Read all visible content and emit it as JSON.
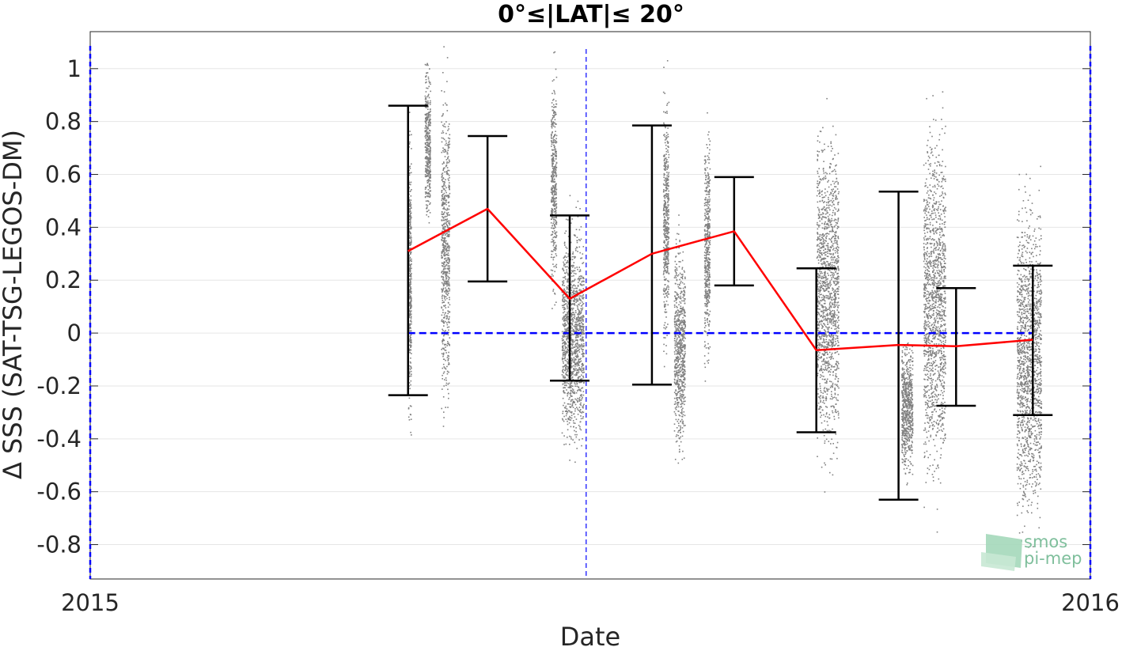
{
  "chart_data": {
    "type": "scatter",
    "title": "0°≤|LAT|≤ 20°",
    "xlabel": "Date",
    "ylabel": "Δ SSS (SAT-TSG-LEGOS-DM)",
    "x_ticks": [
      "2015",
      "2016"
    ],
    "xlim": [
      "2015-01-01",
      "2016-01-01"
    ],
    "ylim": [
      -0.93,
      1.14
    ],
    "y_ticks": [
      -0.8,
      -0.6,
      -0.4,
      -0.2,
      0,
      0.2,
      0.4,
      0.6,
      0.8,
      1
    ],
    "y_tick_labels": [
      "-0.8",
      "-0.6",
      "-0.4",
      "-0.2",
      "0",
      "0.2",
      "0.4",
      "0.6",
      "0.8",
      "1"
    ],
    "grid": "horizontal",
    "reference_lines": [
      {
        "axis": "y",
        "value": 0,
        "x_from": "2015-04-27",
        "x_to": "2015-12-11",
        "style": "dashed",
        "color": "#0000ff"
      },
      {
        "axis": "x",
        "value": "2015-07-01",
        "style": "dashed",
        "color": "#0000ff"
      }
    ],
    "series": [
      {
        "role": "monthly_mean",
        "color": "#ff0000",
        "x": [
          "2015-04-27",
          "2015-05-26",
          "2015-06-25",
          "2015-07-25",
          "2015-08-24",
          "2015-09-23",
          "2015-10-23",
          "2015-11-13",
          "2015-12-11"
        ],
        "y": [
          0.31,
          0.47,
          0.13,
          0.3,
          0.385,
          -0.065,
          -0.045,
          -0.05,
          -0.025
        ]
      },
      {
        "role": "error_bars",
        "color": "#000000",
        "x": [
          "2015-04-27",
          "2015-05-26",
          "2015-06-25",
          "2015-07-25",
          "2015-08-24",
          "2015-09-23",
          "2015-10-23",
          "2015-11-13",
          "2015-12-11"
        ],
        "lower": [
          -0.235,
          0.195,
          -0.18,
          -0.195,
          0.18,
          -0.375,
          -0.63,
          -0.275,
          -0.31
        ],
        "upper": [
          0.86,
          0.745,
          0.445,
          0.785,
          0.59,
          0.245,
          0.535,
          0.17,
          0.255
        ]
      }
    ],
    "scatter_clusters": [
      {
        "x_from": "2015-04-27",
        "x_to": "2015-04-28",
        "y_from": -0.52,
        "y_to": 0.95
      },
      {
        "x_from": "2015-05-03",
        "x_to": "2015-05-05",
        "y_from": 0.32,
        "y_to": 1.1
      },
      {
        "x_from": "2015-05-09",
        "x_to": "2015-05-12",
        "y_from": -0.48,
        "y_to": 1.14
      },
      {
        "x_from": "2015-06-18",
        "x_to": "2015-06-20",
        "y_from": 0.0,
        "y_to": 1.12
      },
      {
        "x_from": "2015-06-22",
        "x_to": "2015-06-30",
        "y_from": -0.57,
        "y_to": 0.55
      },
      {
        "x_from": "2015-07-29",
        "x_to": "2015-07-31",
        "y_from": -0.2,
        "y_to": 1.05
      },
      {
        "x_from": "2015-08-02",
        "x_to": "2015-08-06",
        "y_from": -0.6,
        "y_to": 0.5
      },
      {
        "x_from": "2015-08-13",
        "x_to": "2015-08-15",
        "y_from": -0.28,
        "y_to": 0.92
      },
      {
        "x_from": "2015-09-23",
        "x_to": "2015-10-01",
        "y_from": -0.67,
        "y_to": 1.0
      },
      {
        "x_from": "2015-10-24",
        "x_to": "2015-10-28",
        "y_from": -0.62,
        "y_to": 0.05
      },
      {
        "x_from": "2015-11-01",
        "x_to": "2015-11-09",
        "y_from": -0.78,
        "y_to": 1.03
      },
      {
        "x_from": "2015-12-05",
        "x_to": "2015-12-14",
        "y_from": -0.9,
        "y_to": 0.7
      }
    ]
  },
  "logo": {
    "line1": "smos",
    "line2": "pi-mep"
  },
  "colors": {
    "mean": "#ff0000",
    "errorbar": "#000000",
    "reference": "#0000ff",
    "scatter": "#808080",
    "grid": "#e6e6e6",
    "logo": "#7fbf9c"
  }
}
